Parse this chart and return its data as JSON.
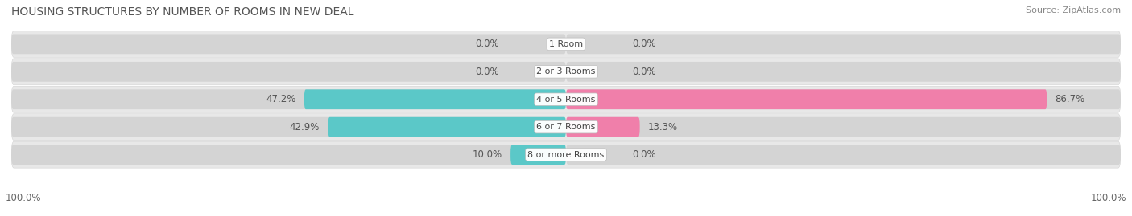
{
  "title": "HOUSING STRUCTURES BY NUMBER OF ROOMS IN NEW DEAL",
  "source": "Source: ZipAtlas.com",
  "categories": [
    "1 Room",
    "2 or 3 Rooms",
    "4 or 5 Rooms",
    "6 or 7 Rooms",
    "8 or more Rooms"
  ],
  "owner_values": [
    0.0,
    0.0,
    47.2,
    42.9,
    10.0
  ],
  "renter_values": [
    0.0,
    0.0,
    86.7,
    13.3,
    0.0
  ],
  "owner_color": "#5bc8c8",
  "renter_color": "#f07faa",
  "row_bg_color": "#e8e8e8",
  "bar_bg_left_color": "#d0d0d0",
  "bar_bg_right_color": "#d0d0d0",
  "max_value": 100.0,
  "title_fontsize": 10,
  "source_fontsize": 8,
  "label_fontsize": 8.5,
  "category_fontsize": 8,
  "legend_fontsize": 9,
  "axis_label_fontsize": 8.5,
  "background_color": "#ffffff"
}
